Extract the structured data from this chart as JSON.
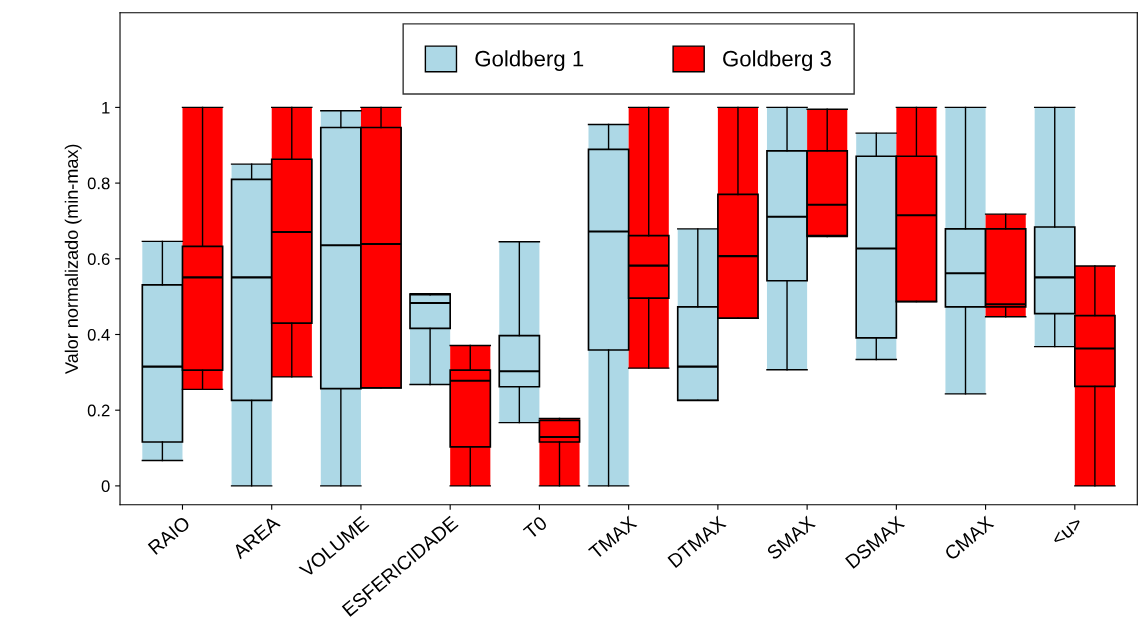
{
  "chart_data": {
    "type": "box",
    "ylabel": "Valor normalizado (min-max)",
    "categories": [
      "RAIO",
      "AREA",
      "VOLUME",
      "ESFERICIDADE",
      "T0",
      "TMAX",
      "DTMAX",
      "SMAX",
      "DSMAX",
      "CMAX",
      "<u>"
    ],
    "ylim": [
      -0.05,
      1.25
    ],
    "yticks": [
      0,
      0.2,
      0.4,
      0.6,
      0.8,
      1
    ],
    "grid": false,
    "legend": "top",
    "series": [
      {
        "name": "Goldberg 1",
        "color": "#add8e6",
        "boxes": [
          {
            "low": 0.067,
            "q1": 0.116,
            "median": 0.315,
            "q3": 0.531,
            "high": 0.646
          },
          {
            "low": 0,
            "q1": 0.226,
            "median": 0.551,
            "q3": 0.81,
            "high": 0.85
          },
          {
            "low": 0,
            "q1": 0.257,
            "median": 0.636,
            "q3": 0.947,
            "high": 0.991
          },
          {
            "low": 0.268,
            "q1": 0.416,
            "median": 0.483,
            "q3": 0.505,
            "high": 0.508
          },
          {
            "low": 0.167,
            "q1": 0.262,
            "median": 0.303,
            "q3": 0.397,
            "high": 0.645
          },
          {
            "low": 0,
            "q1": 0.359,
            "median": 0.672,
            "q3": 0.889,
            "high": 0.955
          },
          {
            "low": 0.226,
            "q1": 0.226,
            "median": 0.315,
            "q3": 0.473,
            "high": 0.679
          },
          {
            "low": 0.307,
            "q1": 0.542,
            "median": 0.711,
            "q3": 0.885,
            "high": 1
          },
          {
            "low": 0.334,
            "q1": 0.391,
            "median": 0.627,
            "q3": 0.871,
            "high": 0.932
          },
          {
            "low": 0.243,
            "q1": 0.473,
            "median": 0.562,
            "q3": 0.679,
            "high": 1
          },
          {
            "low": 0.368,
            "q1": 0.455,
            "median": 0.551,
            "q3": 0.684,
            "high": 1
          }
        ]
      },
      {
        "name": "Goldberg 3",
        "color": "#ff0000",
        "boxes": [
          {
            "low": 0.255,
            "q1": 0.306,
            "median": 0.551,
            "q3": 0.633,
            "high": 1
          },
          {
            "low": 0.288,
            "q1": 0.43,
            "median": 0.671,
            "q3": 0.863,
            "high": 1
          },
          {
            "low": 0.259,
            "q1": 0.259,
            "median": 0.639,
            "q3": 0.947,
            "high": 1
          },
          {
            "low": 0,
            "q1": 0.103,
            "median": 0.278,
            "q3": 0.306,
            "high": 0.371
          },
          {
            "low": 0,
            "q1": 0.116,
            "median": 0.129,
            "q3": 0.173,
            "high": 0.178
          },
          {
            "low": 0.311,
            "q1": 0.496,
            "median": 0.582,
            "q3": 0.661,
            "high": 1
          },
          {
            "low": 0.443,
            "q1": 0.443,
            "median": 0.607,
            "q3": 0.77,
            "high": 1
          },
          {
            "low": 0.659,
            "q1": 0.661,
            "median": 0.743,
            "q3": 0.885,
            "high": 0.995
          },
          {
            "low": 0.487,
            "q1": 0.487,
            "median": 0.715,
            "q3": 0.871,
            "high": 1
          },
          {
            "low": 0.447,
            "q1": 0.473,
            "median": 0.48,
            "q3": 0.679,
            "high": 0.718
          },
          {
            "low": 0,
            "q1": 0.263,
            "median": 0.363,
            "q3": 0.45,
            "high": 0.581
          }
        ]
      }
    ]
  }
}
